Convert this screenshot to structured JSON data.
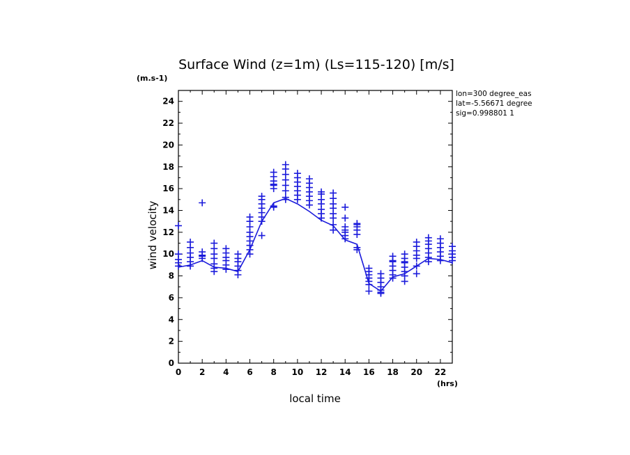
{
  "chart_data": {
    "type": "line",
    "title": "Surface Wind (z=1m) (Ls=115-120) [m/s]",
    "xlabel": "local time",
    "ylabel": "wind velocity",
    "x_unit": "(hrs)",
    "y_unit": "(m.s-1)",
    "xlim": [
      0,
      23
    ],
    "ylim": [
      0,
      25
    ],
    "x_ticks": [
      0,
      2,
      4,
      6,
      8,
      10,
      12,
      14,
      16,
      18,
      20,
      22
    ],
    "y_ticks": [
      0,
      2,
      4,
      6,
      8,
      10,
      12,
      14,
      16,
      18,
      20,
      22,
      24
    ],
    "grid": false,
    "info_lines": [
      "lon=300 degree_eas",
      "lat=-5.56671 degree",
      "sig=0.998801 1"
    ],
    "colors": {
      "series": "#1a1adb",
      "axes": "#000000"
    },
    "mean_line": {
      "x": [
        0,
        1,
        2,
        3,
        4,
        5,
        6,
        7,
        8,
        9,
        10,
        11,
        12,
        13,
        14,
        15,
        16,
        17,
        18,
        19,
        20,
        21,
        22,
        23
      ],
      "y": [
        8.8,
        9.0,
        9.4,
        8.8,
        8.7,
        8.4,
        10.4,
        13.0,
        14.7,
        15.1,
        14.6,
        13.9,
        13.1,
        12.6,
        11.3,
        10.9,
        7.3,
        6.6,
        7.9,
        8.2,
        8.9,
        9.6,
        9.5,
        9.2
      ]
    },
    "scatter": [
      {
        "x": 0,
        "y": [
          12.6,
          10.0,
          9.5,
          9.2,
          8.9
        ]
      },
      {
        "x": 1,
        "y": [
          11.1,
          10.6,
          10.1,
          9.7,
          9.3,
          8.9
        ]
      },
      {
        "x": 2,
        "y": [
          14.7,
          10.2,
          9.9,
          9.8,
          9.6
        ]
      },
      {
        "x": 3,
        "y": [
          11.0,
          10.5,
          10.0,
          9.6,
          9.1,
          8.7,
          8.4
        ]
      },
      {
        "x": 4,
        "y": [
          10.5,
          10.1,
          9.7,
          9.4,
          9.0,
          8.6
        ]
      },
      {
        "x": 5,
        "y": [
          10.0,
          9.6,
          9.3,
          8.9,
          8.5,
          8.1
        ]
      },
      {
        "x": 6,
        "y": [
          13.4,
          13.0,
          12.5,
          12.0,
          11.6,
          11.2,
          10.8,
          10.4,
          10.0
        ]
      },
      {
        "x": 7,
        "y": [
          15.3,
          15.0,
          14.6,
          14.2,
          13.8,
          13.4,
          13.0,
          11.7
        ]
      },
      {
        "x": 8,
        "y": [
          17.5,
          17.1,
          16.7,
          16.4,
          16.3,
          16.0,
          14.4,
          14.3
        ]
      },
      {
        "x": 9,
        "y": [
          18.2,
          17.8,
          17.3,
          16.8,
          16.3,
          15.8,
          15.2,
          15.0
        ]
      },
      {
        "x": 10,
        "y": [
          17.4,
          17.0,
          16.6,
          16.2,
          15.8,
          15.4,
          15.0
        ]
      },
      {
        "x": 11,
        "y": [
          16.9,
          16.5,
          16.1,
          15.7,
          15.3,
          14.9,
          14.5
        ]
      },
      {
        "x": 12,
        "y": [
          15.7,
          15.5,
          15.0,
          14.6,
          14.1,
          13.7,
          13.3
        ]
      },
      {
        "x": 13,
        "y": [
          15.6,
          15.1,
          14.6,
          14.2,
          13.7,
          13.3,
          12.7,
          12.2
        ]
      },
      {
        "x": 14,
        "y": [
          14.3,
          13.3,
          12.5,
          12.2,
          12.0,
          11.7,
          11.4
        ]
      },
      {
        "x": 15,
        "y": [
          12.8,
          12.7,
          12.5,
          12.2,
          11.8,
          10.6,
          10.4
        ]
      },
      {
        "x": 16,
        "y": [
          8.7,
          8.4,
          8.1,
          7.8,
          7.5,
          7.2,
          6.6
        ]
      },
      {
        "x": 17,
        "y": [
          8.2,
          7.8,
          7.4,
          7.0,
          6.7,
          6.5,
          6.4
        ]
      },
      {
        "x": 18,
        "y": [
          9.8,
          9.4,
          9.3,
          8.9,
          8.5,
          8.1,
          7.8
        ]
      },
      {
        "x": 19,
        "y": [
          10.0,
          9.6,
          9.3,
          9.2,
          8.8,
          8.4,
          8.0,
          7.5
        ]
      },
      {
        "x": 20,
        "y": [
          11.1,
          10.7,
          10.3,
          9.9,
          9.6,
          8.9,
          8.2
        ]
      },
      {
        "x": 21,
        "y": [
          11.5,
          11.2,
          10.9,
          10.5,
          10.1,
          9.7,
          9.3
        ]
      },
      {
        "x": 22,
        "y": [
          11.4,
          11.0,
          10.6,
          10.2,
          9.8,
          9.4
        ]
      },
      {
        "x": 23,
        "y": [
          10.7,
          10.3,
          10.0,
          9.7,
          9.4
        ]
      }
    ]
  }
}
